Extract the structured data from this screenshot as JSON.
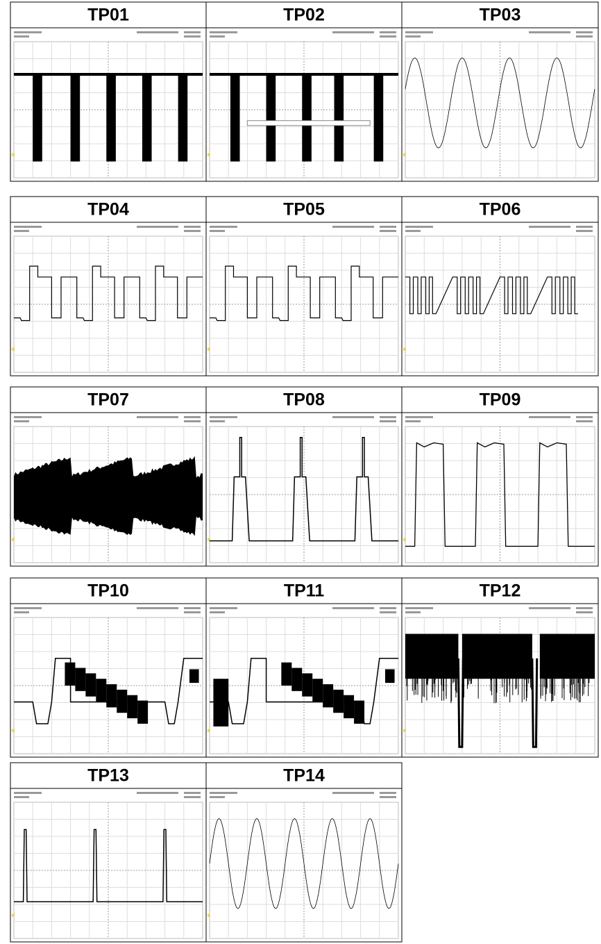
{
  "panels": [
    "TP01",
    "TP02",
    "TP03",
    "TP04",
    "TP05",
    "TP06",
    "TP07",
    "TP08",
    "TP09",
    "TP10",
    "TP11",
    "TP12",
    "TP13",
    "TP14"
  ]
}
